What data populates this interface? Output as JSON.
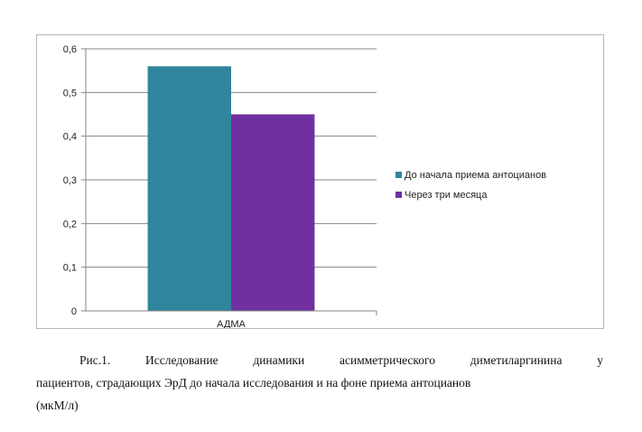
{
  "chart_data": {
    "type": "bar",
    "categories": [
      "АДМА"
    ],
    "series": [
      {
        "name": "До начала приема антоцианов",
        "values": [
          0.56
        ],
        "color": "#31859C"
      },
      {
        "name": "Через три месяца",
        "values": [
          0.45
        ],
        "color": "#7030A0"
      }
    ],
    "yticks": [
      "0",
      "0,1",
      "0,2",
      "0,3",
      "0,4",
      "0,5",
      "0,6"
    ],
    "ylim": [
      0,
      0.6
    ],
    "grid": true,
    "legend_position": "right"
  },
  "caption": {
    "line1": "Рис.1. Исследование динамики асимметрического диметиларгинина у",
    "line2": "пациентов, страдающих ЭрД до начала исследования и на фоне приема антоцианов",
    "line3": "(мкМ/л)"
  },
  "colors": {
    "axis": "#868686",
    "grid": "#868686",
    "frame": "#b7b7b7"
  }
}
